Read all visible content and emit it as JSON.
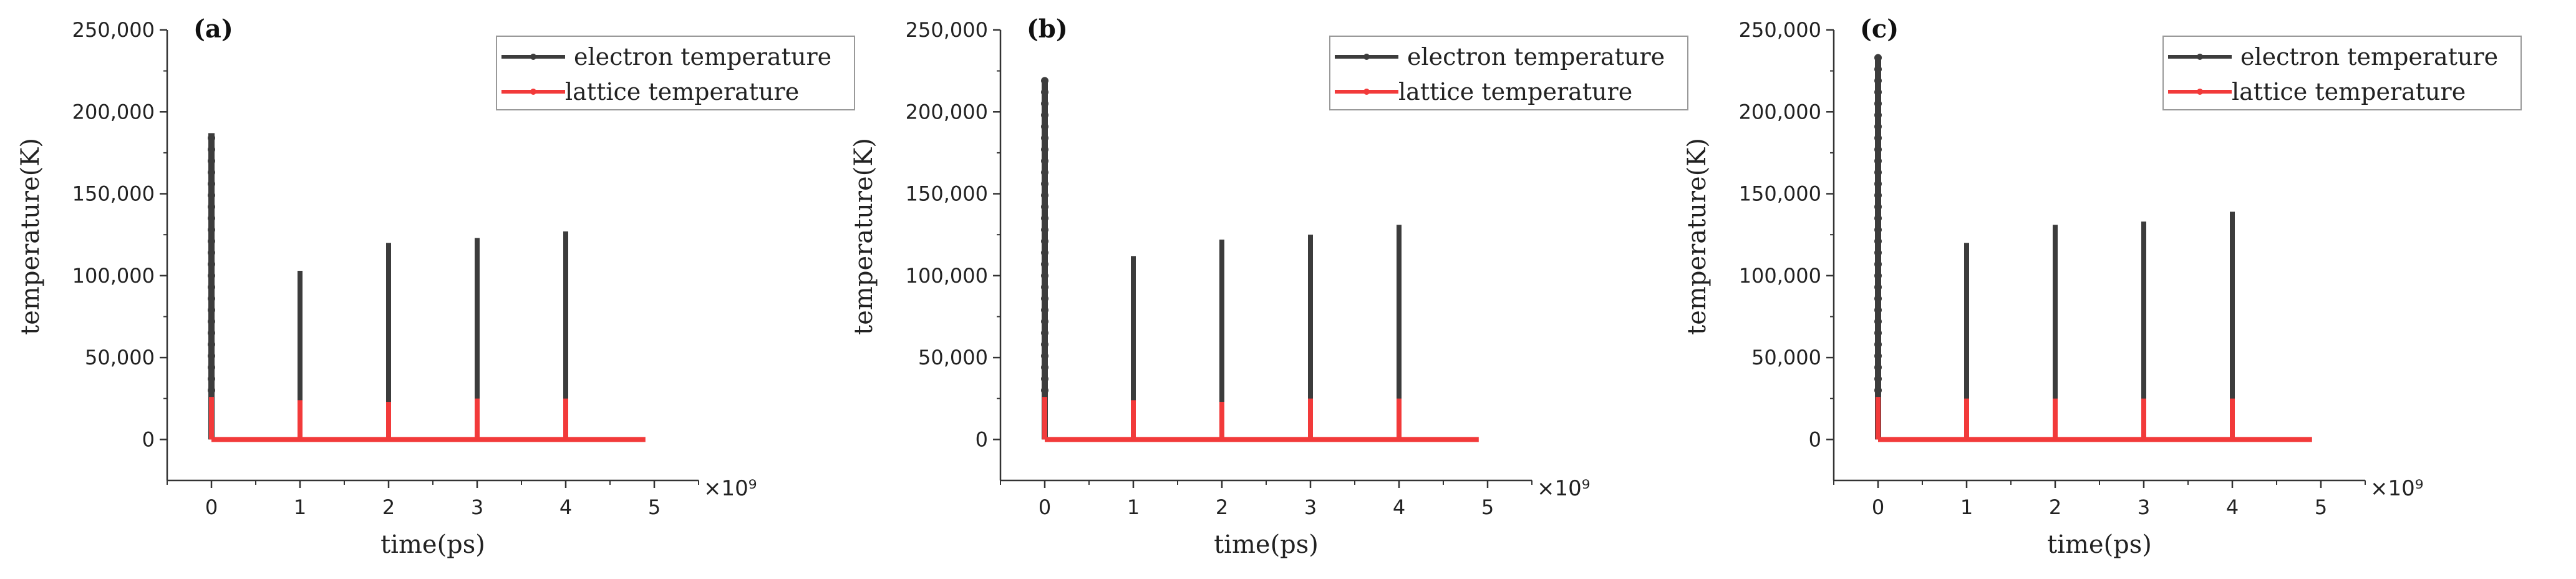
{
  "colors": {
    "electron": "#3c3c3c",
    "lattice": "#f23a3a"
  },
  "chart_data": [
    {
      "type": "line",
      "panel_label": "(a)",
      "xlabel": "time(ps)",
      "ylabel": "temperature(K)",
      "x_multiplier": "×10⁹",
      "xlim": [
        -0.5,
        5.5
      ],
      "ylim": [
        -25000,
        250000
      ],
      "xticks": [
        "0",
        "1",
        "2",
        "3",
        "4",
        "5"
      ],
      "yticks": [
        "0",
        "50,000",
        "100,000",
        "150,000",
        "200,000",
        "250,000"
      ],
      "legend": [
        "electron temperature",
        "lattice temperature"
      ],
      "legend_position": "top-right",
      "grid": false,
      "series": [
        {
          "name": "electron temperature",
          "pulse_x": [
            0,
            1,
            2,
            3,
            4
          ],
          "peak_y": [
            187000,
            103000,
            120000,
            123000,
            127000
          ],
          "x_end": 4.9
        },
        {
          "name": "lattice temperature",
          "pulse_x": [
            0,
            1,
            2,
            3,
            4
          ],
          "peak_y": [
            26000,
            24000,
            23000,
            25000,
            25000
          ],
          "x_end": 4.9
        }
      ]
    },
    {
      "type": "line",
      "panel_label": "(b)",
      "xlabel": "time(ps)",
      "ylabel": "temperature(K)",
      "x_multiplier": "×10⁹",
      "xlim": [
        -0.5,
        5.5
      ],
      "ylim": [
        -25000,
        250000
      ],
      "xticks": [
        "0",
        "1",
        "2",
        "3",
        "4",
        "5"
      ],
      "yticks": [
        "0",
        "50,000",
        "100,000",
        "150,000",
        "200,000",
        "250,000"
      ],
      "legend": [
        "electron temperature",
        "lattice temperature"
      ],
      "legend_position": "top-right",
      "grid": false,
      "series": [
        {
          "name": "electron temperature",
          "pulse_x": [
            0,
            1,
            2,
            3,
            4
          ],
          "peak_y": [
            220000,
            112000,
            122000,
            125000,
            131000
          ],
          "x_end": 4.9
        },
        {
          "name": "lattice temperature",
          "pulse_x": [
            0,
            1,
            2,
            3,
            4
          ],
          "peak_y": [
            26000,
            24000,
            23000,
            25000,
            25000
          ],
          "x_end": 4.9
        }
      ]
    },
    {
      "type": "line",
      "panel_label": "(c)",
      "xlabel": "time(ps)",
      "ylabel": "temperature(K)",
      "x_multiplier": "×10⁹",
      "xlim": [
        -0.5,
        5.5
      ],
      "ylim": [
        -25000,
        250000
      ],
      "xticks": [
        "0",
        "1",
        "2",
        "3",
        "4",
        "5"
      ],
      "yticks": [
        "0",
        "50,000",
        "100,000",
        "150,000",
        "200,000",
        "250,000"
      ],
      "legend": [
        "electron temperature",
        "lattice temperature"
      ],
      "legend_position": "top-right",
      "grid": false,
      "series": [
        {
          "name": "electron temperature",
          "pulse_x": [
            0,
            1,
            2,
            3,
            4
          ],
          "peak_y": [
            234000,
            120000,
            131000,
            133000,
            139000
          ],
          "x_end": 4.9
        },
        {
          "name": "lattice temperature",
          "pulse_x": [
            0,
            1,
            2,
            3,
            4
          ],
          "peak_y": [
            26000,
            25000,
            25000,
            25000,
            25000
          ],
          "x_end": 4.9
        }
      ]
    }
  ]
}
